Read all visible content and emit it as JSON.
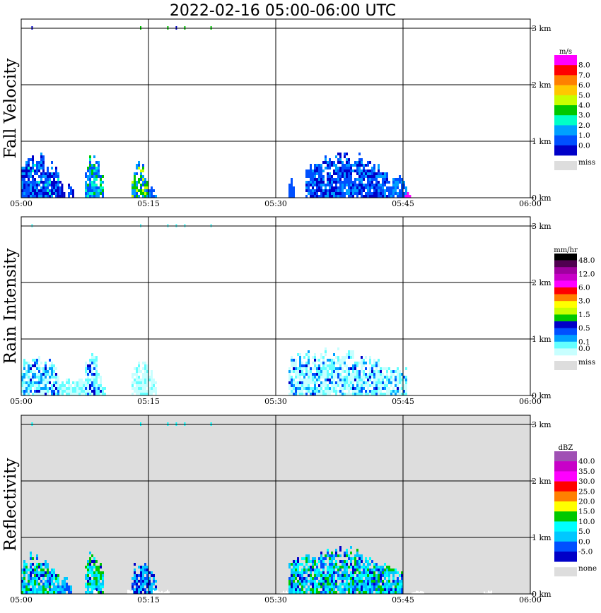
{
  "chart_data": {
    "title": "2022-02-16  05:00-06:00 UTC",
    "type": "heatmap",
    "x_ticks": [
      "05:00",
      "05:15",
      "05:30",
      "05:45",
      "06:00"
    ],
    "x_range_minutes": [
      0,
      60
    ],
    "y_ticks": [
      "0 km",
      "1 km",
      "2 km",
      "3 km"
    ],
    "y_range_km": [
      0,
      3.2
    ],
    "panels": [
      {
        "name": "fall-velocity",
        "ylabel": "Fall Velocity",
        "background": "#ffffff",
        "legend": {
          "unit": "m/s",
          "levels": [
            "8.0",
            "7.0",
            "6.0",
            "5.0",
            "4.0",
            "3.0",
            "2.0",
            "1.0",
            "0.0"
          ],
          "colors": [
            "#ff00ff",
            "#ff0000",
            "#ff8000",
            "#ffc800",
            "#c8ff00",
            "#00c800",
            "#00ffc8",
            "#00a0ff",
            "#0050ff",
            "#0000c8"
          ],
          "miss_label": "miss",
          "miss_color": "#dddddd"
        },
        "echoes": [
          {
            "t0": 0.0,
            "t1": 4.8,
            "h": 0.8,
            "mix": [
              [
                "#0000c8",
                0.35
              ],
              [
                "#0050ff",
                0.35
              ],
              [
                "#00a0ff",
                0.25
              ],
              [
                "#00ffc8",
                0.05
              ]
            ]
          },
          {
            "t0": 4.2,
            "t1": 5.3,
            "h": 0.25,
            "mix": [
              [
                "#0000c8",
                0.6
              ],
              [
                "#0050ff",
                0.4
              ]
            ]
          },
          {
            "t0": 5.5,
            "t1": 6.3,
            "h": 0.3,
            "mix": [
              [
                "#0050ff",
                0.5
              ],
              [
                "#0000c8",
                0.5
              ]
            ]
          },
          {
            "t0": 7.5,
            "t1": 9.8,
            "h": 0.8,
            "mix": [
              [
                "#0050ff",
                0.35
              ],
              [
                "#00a0ff",
                0.3
              ],
              [
                "#00c800",
                0.15
              ],
              [
                "#00ffc8",
                0.2
              ]
            ]
          },
          {
            "t0": 13.0,
            "t1": 15.0,
            "h": 0.65,
            "mix": [
              [
                "#00c800",
                0.3
              ],
              [
                "#c8ff00",
                0.2
              ],
              [
                "#00a0ff",
                0.3
              ],
              [
                "#0050ff",
                0.2
              ]
            ]
          },
          {
            "t0": 15.0,
            "t1": 16.0,
            "h": 0.25,
            "mix": [
              [
                "#0050ff",
                0.6
              ],
              [
                "#00a0ff",
                0.4
              ]
            ]
          },
          {
            "t0": 31.5,
            "t1": 32.2,
            "h": 0.35,
            "mix": [
              [
                "#0050ff",
                1.0
              ]
            ]
          },
          {
            "t0": 33.5,
            "t1": 43.5,
            "h": 0.85,
            "mix": [
              [
                "#0000c8",
                0.3
              ],
              [
                "#0050ff",
                0.45
              ],
              [
                "#00a0ff",
                0.25
              ]
            ]
          },
          {
            "t0": 43.5,
            "t1": 45.5,
            "h": 0.45,
            "mix": [
              [
                "#00a0ff",
                0.5
              ],
              [
                "#0050ff",
                0.5
              ]
            ]
          },
          {
            "t0": 45.2,
            "t1": 45.9,
            "h": 0.1,
            "mix": [
              [
                "#ff00ff",
                1.0
              ]
            ]
          }
        ],
        "specks": [
          {
            "t": 1.2,
            "color": "#0000c8"
          },
          {
            "t": 14.0,
            "color": "#00c800"
          },
          {
            "t": 17.2,
            "color": "#00c800"
          },
          {
            "t": 18.2,
            "color": "#0000c8"
          },
          {
            "t": 19.2,
            "color": "#00c800"
          },
          {
            "t": 22.3,
            "color": "#00c800"
          }
        ]
      },
      {
        "name": "rain-intensity",
        "ylabel": "Rain Intensity",
        "background": "#ffffff",
        "legend": {
          "unit": "mm/hr",
          "levels": [
            "48.0",
            "",
            "12.0",
            "",
            "6.0",
            "",
            "3.0",
            "",
            "1.5",
            "",
            "0.5",
            "",
            "0.1",
            "0.0"
          ],
          "colors": [
            "#000000",
            "#500050",
            "#a000a0",
            "#c800c8",
            "#ff00ff",
            "#ff0000",
            "#ff8000",
            "#ffff00",
            "#c8ff00",
            "#00c800",
            "#0000c8",
            "#0050ff",
            "#00a0ff",
            "#64ffff",
            "#c8ffff"
          ],
          "miss_label": "miss",
          "miss_color": "#dddddd"
        },
        "echoes": [
          {
            "t0": 0.0,
            "t1": 4.5,
            "h": 0.8,
            "mix": [
              [
                "#c8ffff",
                0.35
              ],
              [
                "#64ffff",
                0.3
              ],
              [
                "#00a0ff",
                0.2
              ],
              [
                "#0050ff",
                0.1
              ],
              [
                "#0000c8",
                0.05
              ]
            ]
          },
          {
            "t0": 4.5,
            "t1": 10.0,
            "h": 0.3,
            "mix": [
              [
                "#c8ffff",
                0.6
              ],
              [
                "#64ffff",
                0.4
              ]
            ]
          },
          {
            "t0": 7.5,
            "t1": 9.5,
            "h": 0.8,
            "mix": [
              [
                "#c8ffff",
                0.4
              ],
              [
                "#64ffff",
                0.3
              ],
              [
                "#0050ff",
                0.2
              ],
              [
                "#0000c8",
                0.1
              ]
            ]
          },
          {
            "t0": 13.0,
            "t1": 16.0,
            "h": 0.6,
            "mix": [
              [
                "#c8ffff",
                0.7
              ],
              [
                "#64ffff",
                0.3
              ]
            ]
          },
          {
            "t0": 31.5,
            "t1": 45.5,
            "h": 0.85,
            "mix": [
              [
                "#c8ffff",
                0.45
              ],
              [
                "#64ffff",
                0.3
              ],
              [
                "#00a0ff",
                0.13
              ],
              [
                "#0050ff",
                0.08
              ],
              [
                "#0000c8",
                0.04
              ]
            ]
          }
        ],
        "specks": [
          {
            "t": 1.2,
            "color": "#64ffff"
          },
          {
            "t": 14.0,
            "color": "#64ffff"
          },
          {
            "t": 17.2,
            "color": "#64ffff"
          },
          {
            "t": 18.2,
            "color": "#64ffff"
          },
          {
            "t": 19.2,
            "color": "#64ffff"
          },
          {
            "t": 22.3,
            "color": "#64ffff"
          }
        ]
      },
      {
        "name": "reflectivity",
        "ylabel": "Reflectivity",
        "background": "#dddddd",
        "legend": {
          "unit": "dBZ",
          "levels": [
            "40.0",
            "35.0",
            "30.0",
            "25.0",
            "20.0",
            "15.0",
            "10.0",
            "5.0",
            "0.0",
            "-5.0"
          ],
          "colors": [
            "#a050b4",
            "#c800c8",
            "#ff00ff",
            "#ff0000",
            "#ff8000",
            "#ffff00",
            "#00c800",
            "#00ffff",
            "#00c8ff",
            "#0050ff",
            "#0000c8"
          ],
          "miss_label": "none",
          "miss_color": "#dddddd"
        },
        "echoes": [
          {
            "t0": 0.0,
            "t1": 4.5,
            "h": 0.75,
            "mix": [
              [
                "#00c8ff",
                0.35
              ],
              [
                "#00ffff",
                0.25
              ],
              [
                "#00c800",
                0.2
              ],
              [
                "#0050ff",
                0.1
              ],
              [
                "#0000c8",
                0.1
              ]
            ]
          },
          {
            "t0": 4.5,
            "t1": 6.0,
            "h": 0.3,
            "mix": [
              [
                "#0050ff",
                0.5
              ],
              [
                "#00c8ff",
                0.5
              ]
            ]
          },
          {
            "t0": 7.5,
            "t1": 9.8,
            "h": 0.8,
            "mix": [
              [
                "#00c800",
                0.3
              ],
              [
                "#00ffff",
                0.3
              ],
              [
                "#00c8ff",
                0.3
              ],
              [
                "#0000c8",
                0.1
              ]
            ]
          },
          {
            "t0": 13.0,
            "t1": 16.0,
            "h": 0.6,
            "mix": [
              [
                "#00c8ff",
                0.4
              ],
              [
                "#0050ff",
                0.3
              ],
              [
                "#0000c8",
                0.3
              ]
            ]
          },
          {
            "t0": 31.5,
            "t1": 45.0,
            "h": 0.85,
            "mix": [
              [
                "#00c8ff",
                0.3
              ],
              [
                "#00ffff",
                0.25
              ],
              [
                "#00c800",
                0.2
              ],
              [
                "#0050ff",
                0.15
              ],
              [
                "#0000c8",
                0.1
              ]
            ]
          }
        ],
        "specks": [
          {
            "t": 1.2,
            "color": "#00ffff"
          },
          {
            "t": 14.0,
            "color": "#00ffff"
          },
          {
            "t": 17.2,
            "color": "#00ffff"
          },
          {
            "t": 18.2,
            "color": "#00ffff"
          },
          {
            "t": 19.2,
            "color": "#00ffff"
          },
          {
            "t": 22.3,
            "color": "#00ffff"
          }
        ],
        "gaps": [
          {
            "t0": 8.5,
            "t1": 9.0,
            "h": 0.1
          },
          {
            "t0": 12.5,
            "t1": 13.2,
            "h": 0.15
          },
          {
            "t0": 15.5,
            "t1": 17.5,
            "h": 0.08
          },
          {
            "t0": 30.5,
            "t1": 31.5,
            "h": 0.06
          },
          {
            "t0": 46.0,
            "t1": 47.5,
            "h": 0.06
          },
          {
            "t0": 54.5,
            "t1": 55.5,
            "h": 0.06
          }
        ]
      }
    ]
  }
}
